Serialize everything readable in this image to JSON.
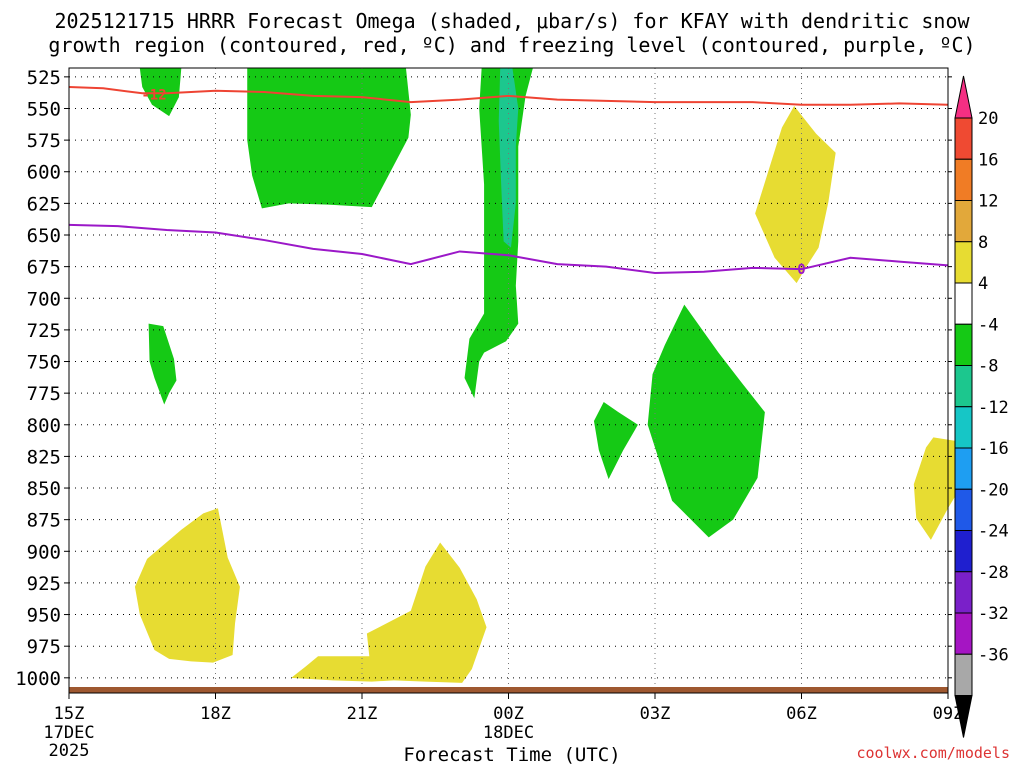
{
  "title": {
    "line1": "2025121715 HRRR Forecast Omega (shaded, μbar/s) for KFAY with dendritic snow",
    "line2": "growth region (contoured, red, ºC) and freezing level (contoured, purple, ºC)"
  },
  "credit": "coolwx.com/models",
  "chart_data": {
    "type": "contour",
    "xlabel": "Forecast Time (UTC)",
    "x_ticks": [
      {
        "hour": 0,
        "label": "15Z",
        "sub": [
          "17DEC",
          "2025"
        ]
      },
      {
        "hour": 3,
        "label": "18Z"
      },
      {
        "hour": 6,
        "label": "21Z"
      },
      {
        "hour": 9,
        "label": "00Z",
        "sub": [
          "18DEC"
        ]
      },
      {
        "hour": 12,
        "label": "03Z"
      },
      {
        "hour": 15,
        "label": "06Z"
      },
      {
        "hour": 18,
        "label": "09Z"
      }
    ],
    "xlim": [
      0,
      18
    ],
    "ylim": [
      1012,
      518
    ],
    "y_ticks": [
      525,
      550,
      575,
      600,
      625,
      650,
      675,
      700,
      725,
      750,
      775,
      800,
      825,
      850,
      875,
      900,
      925,
      950,
      975,
      1000
    ],
    "colorbar": {
      "labels": [
        "20",
        "16",
        "12",
        "8",
        "4",
        "-4",
        "-8",
        "-12",
        "-16",
        "-20",
        "-24",
        "-28",
        "-32",
        "-36"
      ],
      "colors": [
        "#f52f83",
        "#ef4a32",
        "#f07c25",
        "#e2a83a",
        "#e7dc32",
        "#ffffff",
        "#15c915",
        "#1cc78e",
        "#16c6c6",
        "#1e9ef2",
        "#1f59e8",
        "#1f1fcf",
        "#7a20c9",
        "#a515c3",
        "#a8a8a8",
        "#000000"
      ]
    },
    "contours": [
      {
        "name": "dendritic",
        "level_label": "-12",
        "color": "#ee4433",
        "points": [
          [
            0,
            533
          ],
          [
            0.7,
            534
          ],
          [
            1.5,
            538
          ],
          [
            2,
            538
          ],
          [
            3,
            536
          ],
          [
            4,
            537
          ],
          [
            5,
            540
          ],
          [
            6,
            541
          ],
          [
            7,
            545
          ],
          [
            8,
            543
          ],
          [
            9,
            540
          ],
          [
            10,
            543
          ],
          [
            11,
            544
          ],
          [
            12,
            545
          ],
          [
            13,
            545
          ],
          [
            14,
            545
          ],
          [
            15,
            547
          ],
          [
            16,
            547
          ],
          [
            17,
            546
          ],
          [
            18,
            547
          ]
        ]
      },
      {
        "name": "freezing",
        "level_label": "0",
        "color": "#9b18c8",
        "points": [
          [
            0,
            642
          ],
          [
            1,
            643
          ],
          [
            2,
            646
          ],
          [
            3,
            648
          ],
          [
            4,
            654
          ],
          [
            5,
            661
          ],
          [
            6,
            665
          ],
          [
            7,
            673
          ],
          [
            8,
            663
          ],
          [
            9,
            666
          ],
          [
            10,
            673
          ],
          [
            11,
            675
          ],
          [
            12,
            680
          ],
          [
            13,
            679
          ],
          [
            14,
            676
          ],
          [
            15,
            677
          ],
          [
            16,
            668
          ],
          [
            17,
            671
          ],
          [
            18,
            674
          ]
        ]
      }
    ],
    "regions": [
      {
        "color": "#15c915",
        "points": [
          [
            1.45,
            518
          ],
          [
            2.3,
            518
          ],
          [
            2.25,
            541
          ],
          [
            2.05,
            556
          ],
          [
            1.7,
            547
          ],
          [
            1.5,
            533
          ]
        ]
      },
      {
        "color": "#15c915",
        "points": [
          [
            3.65,
            518
          ],
          [
            6.9,
            518
          ],
          [
            7,
            555
          ],
          [
            6.95,
            573
          ],
          [
            6.2,
            628
          ],
          [
            5.3,
            626
          ],
          [
            4.5,
            625
          ],
          [
            3.95,
            629
          ],
          [
            3.75,
            603
          ],
          [
            3.65,
            575
          ],
          [
            3.65,
            550
          ]
        ]
      },
      {
        "color": "#15c915",
        "points": [
          [
            8.45,
            518
          ],
          [
            9.5,
            518
          ],
          [
            9.35,
            540
          ],
          [
            9.2,
            580
          ],
          [
            9.2,
            655
          ],
          [
            9.15,
            690
          ],
          [
            9.2,
            720
          ],
          [
            8.95,
            734
          ],
          [
            8.5,
            743
          ],
          [
            8.4,
            750
          ],
          [
            8.3,
            779
          ],
          [
            8.1,
            763
          ],
          [
            8.2,
            732
          ],
          [
            8.5,
            712
          ],
          [
            8.5,
            665
          ],
          [
            8.5,
            610
          ],
          [
            8.4,
            550
          ]
        ]
      },
      {
        "color": "#1cc78e",
        "points": [
          [
            8.83,
            518
          ],
          [
            9.08,
            518
          ],
          [
            9.2,
            550
          ],
          [
            9.15,
            580
          ],
          [
            9.15,
            625
          ],
          [
            9.05,
            660
          ],
          [
            8.9,
            655
          ],
          [
            8.85,
            610
          ],
          [
            8.8,
            560
          ]
        ]
      },
      {
        "color": "#15c915",
        "points": [
          [
            1.63,
            720
          ],
          [
            1.93,
            722
          ],
          [
            2.15,
            748
          ],
          [
            2.2,
            765
          ],
          [
            2.05,
            775
          ],
          [
            1.95,
            784
          ],
          [
            1.75,
            763
          ],
          [
            1.65,
            750
          ]
        ]
      },
      {
        "color": "#15c915",
        "points": [
          [
            10.95,
            782
          ],
          [
            11.25,
            790
          ],
          [
            11.65,
            800
          ],
          [
            11.35,
            820
          ],
          [
            11.05,
            843
          ],
          [
            10.85,
            820
          ],
          [
            10.75,
            797
          ]
        ]
      },
      {
        "color": "#15c915",
        "points": [
          [
            12.6,
            705
          ],
          [
            13.3,
            743
          ],
          [
            13.8,
            768
          ],
          [
            14.25,
            790
          ],
          [
            14.1,
            842
          ],
          [
            13.6,
            875
          ],
          [
            13.1,
            889
          ],
          [
            12.35,
            860
          ],
          [
            11.85,
            800
          ],
          [
            11.95,
            760
          ],
          [
            12.2,
            737
          ]
        ]
      },
      {
        "color": "#e7dc32",
        "points": [
          [
            14.85,
            548
          ],
          [
            15.3,
            570
          ],
          [
            15.7,
            585
          ],
          [
            15.55,
            624
          ],
          [
            15.35,
            660
          ],
          [
            15.1,
            675
          ],
          [
            14.9,
            688
          ],
          [
            14.45,
            668
          ],
          [
            14.05,
            633
          ],
          [
            14.35,
            596
          ],
          [
            14.6,
            565
          ]
        ]
      },
      {
        "color": "#e7dc32",
        "points": [
          [
            17.7,
            810
          ],
          [
            18.2,
            813
          ],
          [
            18.5,
            827
          ],
          [
            18.25,
            850
          ],
          [
            18,
            866
          ],
          [
            17.65,
            891
          ],
          [
            17.35,
            874
          ],
          [
            17.3,
            847
          ],
          [
            17.55,
            818
          ]
        ]
      },
      {
        "color": "#e7dc32",
        "points": [
          [
            3.05,
            866
          ],
          [
            3.25,
            905
          ],
          [
            3.5,
            928
          ],
          [
            3.4,
            957
          ],
          [
            3.35,
            982
          ],
          [
            2.95,
            988
          ],
          [
            2.5,
            987
          ],
          [
            2.05,
            985
          ],
          [
            1.75,
            978
          ],
          [
            1.45,
            950
          ],
          [
            1.35,
            928
          ],
          [
            1.6,
            906
          ],
          [
            2.3,
            883
          ],
          [
            2.75,
            870
          ]
        ]
      },
      {
        "color": "#e7dc32",
        "points": [
          [
            7.6,
            893
          ],
          [
            8,
            913
          ],
          [
            8.35,
            938
          ],
          [
            8.55,
            960
          ],
          [
            8.25,
            993
          ],
          [
            8.05,
            1004
          ],
          [
            7.3,
            1003
          ],
          [
            6.65,
            1002
          ],
          [
            6.2,
            1003
          ],
          [
            5.4,
            1002
          ],
          [
            4.55,
            1000
          ],
          [
            4.85,
            991
          ],
          [
            5.1,
            983
          ],
          [
            6.15,
            983
          ],
          [
            6.1,
            965
          ],
          [
            7,
            947
          ],
          [
            7.3,
            912
          ]
        ]
      }
    ],
    "terrain_color": "#9e5830"
  }
}
